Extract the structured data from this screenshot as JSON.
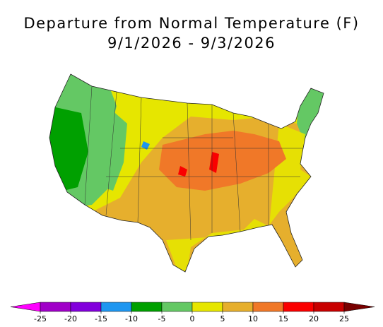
{
  "title": [
    "Departure from Normal Temperature (F)",
    "9/1/2026 - 9/3/2026"
  ],
  "colorbar": {
    "ticks": [
      -25,
      -20,
      -15,
      -10,
      -5,
      0,
      5,
      10,
      15,
      20,
      25
    ],
    "colors": [
      "#ff00ff",
      "#a000c8",
      "#8200dc",
      "#1e96f0",
      "#00a000",
      "#64c864",
      "#e6e600",
      "#e6af2d",
      "#f07828",
      "#fa0000",
      "#c80000",
      "#780000"
    ]
  }
}
